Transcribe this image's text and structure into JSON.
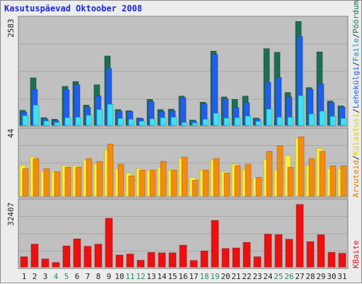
{
  "title": "Kasutuspäevad Oktoober 2008",
  "colors": {
    "background": "#ececec",
    "panel": "#c0c0c0",
    "pages": "#2060e8",
    "pages_cap": "#1a40a0",
    "hits": "#1c7050",
    "files": "#40e0f0",
    "visits": "#f8f040",
    "visits_cap": "#c0a000",
    "visitors": "#f08c10",
    "visitors_cap": "#b05000",
    "kbytes": "#ee1010",
    "weekend": "#2a8a5a",
    "weekday": "#202020",
    "title": "#1c2ad6"
  },
  "right_labels": {
    "hits": "Pöördumisi",
    "sep1": "/",
    "files": "Faile",
    "sep2": "/",
    "pages": "Lehekülgi",
    "sep3": "/",
    "visitors": "Külastusi",
    "sep4": "/",
    "visits": "Arvuteid",
    "kbytes": "KBaite"
  },
  "chart_data": [
    {
      "type": "bar",
      "panel": "top",
      "max_label": "2583",
      "ylim": [
        0,
        2583
      ],
      "categories": [
        "1",
        "2",
        "3",
        "4",
        "5",
        "6",
        "7",
        "8",
        "9",
        "10",
        "11",
        "12",
        "13",
        "14",
        "15",
        "16",
        "17",
        "18",
        "19",
        "20",
        "21",
        "22",
        "23",
        "24",
        "25",
        "26",
        "27",
        "28",
        "29",
        "30",
        "31"
      ],
      "weekend_days": [
        "4",
        "5",
        "11",
        "12",
        "18",
        "19",
        "25",
        "26"
      ],
      "series": [
        {
          "name": "Pöördumisi",
          "values": [
            370,
            1170,
            190,
            150,
            960,
            1080,
            500,
            1000,
            1710,
            390,
            360,
            180,
            640,
            390,
            400,
            720,
            130,
            570,
            1830,
            700,
            640,
            720,
            180,
            1890,
            1800,
            810,
            2560,
            930,
            1810,
            600,
            480
          ]
        },
        {
          "name": "Faile",
          "values": [
            240,
            500,
            110,
            70,
            190,
            200,
            250,
            390,
            520,
            170,
            150,
            100,
            160,
            190,
            200,
            70,
            60,
            150,
            300,
            180,
            190,
            230,
            100,
            400,
            200,
            200,
            730,
            280,
            350,
            220,
            170
          ]
        },
        {
          "name": "Lehekülgi",
          "values": [
            330,
            890,
            160,
            120,
            880,
            1000,
            450,
            730,
            1400,
            350,
            340,
            170,
            580,
            340,
            360,
            680,
            110,
            530,
            1750,
            650,
            440,
            560,
            160,
            1060,
            1180,
            700,
            2190,
            890,
            1020,
            560,
            450
          ]
        }
      ]
    },
    {
      "type": "bar",
      "panel": "middle",
      "max_label": "44",
      "ylim": [
        0,
        44
      ],
      "categories": [
        "1",
        "2",
        "3",
        "4",
        "5",
        "6",
        "7",
        "8",
        "9",
        "10",
        "11",
        "12",
        "13",
        "14",
        "15",
        "16",
        "17",
        "18",
        "19",
        "20",
        "21",
        "22",
        "23",
        "24",
        "25",
        "26",
        "27",
        "28",
        "29",
        "30",
        "31"
      ],
      "series": [
        {
          "name": "Arvuteid",
          "values": [
            19,
            26,
            19,
            17,
            20,
            20,
            26,
            24,
            36,
            22,
            14,
            18,
            18,
            24,
            18,
            27,
            11,
            18,
            26,
            16,
            21,
            22,
            13,
            31,
            35,
            20,
            41,
            26,
            31,
            21,
            21
          ]
        },
        {
          "name": "Külastusi",
          "values": [
            21,
            27,
            17,
            17,
            21,
            21,
            25,
            22,
            32,
            19,
            16,
            19,
            18,
            20,
            18,
            26,
            13,
            18,
            25,
            17,
            22,
            18,
            13,
            25,
            18,
            28,
            40,
            21,
            33,
            19,
            19
          ]
        }
      ]
    },
    {
      "type": "bar",
      "panel": "bottom",
      "max_label": "32407",
      "ylim": [
        0,
        32407
      ],
      "categories": [
        "1",
        "2",
        "3",
        "4",
        "5",
        "6",
        "7",
        "8",
        "9",
        "10",
        "11",
        "12",
        "13",
        "14",
        "15",
        "16",
        "17",
        "18",
        "19",
        "20",
        "21",
        "22",
        "23",
        "24",
        "25",
        "26",
        "27",
        "28",
        "29",
        "30",
        "31"
      ],
      "series": [
        {
          "name": "KBaite",
          "values": [
            5200,
            11600,
            4100,
            2300,
            10700,
            14300,
            10500,
            11600,
            24800,
            6100,
            6600,
            3400,
            7400,
            7200,
            7200,
            11100,
            3300,
            8200,
            23700,
            9400,
            9700,
            12500,
            5200,
            16700,
            16500,
            14100,
            31800,
            12900,
            16400,
            7400,
            7000
          ]
        }
      ]
    }
  ]
}
